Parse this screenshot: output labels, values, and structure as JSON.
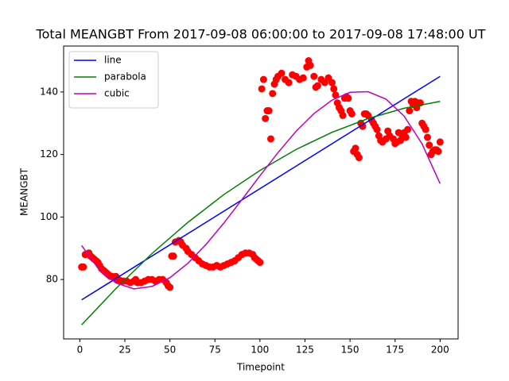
{
  "chart_data": {
    "type": "scatter",
    "title": "Total MEANGBT From 2017-09-08 06:00:00 to 2017-09-08 17:48:00 UT",
    "x_label": "Timepoint",
    "y_label": "MEANGBT",
    "color": "#ff0000",
    "x": [
      1,
      2,
      3,
      5,
      6,
      7,
      8,
      9,
      10,
      11,
      12,
      13,
      14,
      15,
      16,
      17,
      18,
      19,
      20,
      21,
      22,
      24,
      26,
      28,
      30,
      31,
      32,
      34,
      36,
      38,
      40,
      42,
      44,
      46,
      48,
      49,
      50,
      51,
      52,
      53,
      55,
      56,
      57,
      59,
      60,
      62,
      64,
      66,
      68,
      70,
      72,
      74,
      76,
      78,
      80,
      82,
      84,
      86,
      88,
      90,
      92,
      94,
      96,
      97,
      98,
      99,
      100,
      101,
      102,
      103,
      104,
      105,
      106,
      107,
      108,
      109,
      110,
      112,
      114,
      116,
      118,
      120,
      122,
      124,
      126,
      127,
      128,
      130,
      131,
      132,
      134,
      136,
      138,
      140,
      141,
      142,
      143,
      144,
      145,
      146,
      147,
      148,
      149,
      150,
      151,
      152,
      153,
      154,
      155,
      156,
      157,
      158,
      159,
      160,
      162,
      163,
      164,
      165,
      166,
      167,
      168,
      170,
      171,
      172,
      174,
      175,
      176,
      177,
      178,
      179,
      180,
      181,
      182,
      183,
      184,
      185,
      186,
      187,
      188,
      189,
      190,
      191,
      192,
      193,
      194,
      195,
      196,
      197,
      198,
      199,
      200
    ],
    "values": [
      84,
      84,
      88,
      88.5,
      87.5,
      87,
      86.5,
      86,
      85.5,
      84.5,
      83.5,
      83,
      82.5,
      82,
      81.5,
      81,
      81,
      80.5,
      81,
      80,
      79.8,
      79.5,
      79.5,
      79,
      79.5,
      80,
      79,
      79,
      79.5,
      80,
      80,
      79.5,
      80,
      80,
      79,
      78,
      77.5,
      87.5,
      87.5,
      92,
      92.5,
      92,
      91,
      90,
      89,
      88,
      87,
      86,
      85,
      84.5,
      84,
      84,
      84.5,
      84,
      84.5,
      85,
      85.5,
      86,
      87,
      88,
      88.5,
      88.5,
      88,
      87,
      86.5,
      86,
      85.5,
      141,
      144,
      131.5,
      134,
      134,
      125,
      139.5,
      142.5,
      144,
      145,
      146,
      144,
      143,
      145.5,
      145,
      144,
      144.5,
      148,
      150,
      148.5,
      145,
      141.5,
      142,
      144,
      143,
      144.5,
      143,
      141,
      139,
      136.5,
      135,
      134,
      132.5,
      138,
      138.5,
      138,
      134,
      133,
      121,
      122,
      120,
      119,
      130,
      129,
      133,
      133,
      132.5,
      131,
      130,
      129,
      128,
      126,
      124.5,
      124,
      125,
      127.5,
      126,
      125,
      123.5,
      124,
      127,
      124.5,
      126,
      127,
      125.5,
      128,
      134,
      137,
      136,
      137,
      135,
      136.5,
      136.5,
      130,
      129,
      128,
      125.5,
      123,
      120,
      121,
      121.5,
      121.5,
      121,
      124
    ],
    "series": [
      {
        "name": "line",
        "color": "#0000ff",
        "x": [
          1,
          200
        ],
        "values": [
          73.5,
          145
        ]
      },
      {
        "name": "parabola",
        "color": "#008000",
        "x": [
          1,
          20,
          40,
          60,
          80,
          100,
          120,
          140,
          160,
          180,
          200
        ],
        "values": [
          65.5,
          77.1,
          88.3,
          98.3,
          107.2,
          114.9,
          121.6,
          127.1,
          131.5,
          134.8,
          137.0
        ]
      },
      {
        "name": "cubic",
        "color": "#bf00bf",
        "x": [
          1,
          10,
          20,
          30,
          40,
          50,
          60,
          70,
          80,
          90,
          100,
          110,
          120,
          130,
          140,
          150,
          160,
          170,
          180,
          190,
          200
        ],
        "values": [
          90.9,
          83.7,
          78.9,
          77.0,
          77.8,
          80.6,
          85.2,
          91.2,
          98.1,
          105.6,
          113.2,
          120.6,
          127.4,
          133.1,
          137.4,
          139.9,
          140.1,
          137.7,
          132.3,
          123.4,
          110.7
        ]
      }
    ],
    "xlim": [
      -9,
      210
    ],
    "ylim": [
      61,
      154.7
    ],
    "xticks": [
      0,
      25,
      50,
      75,
      100,
      125,
      150,
      175,
      200
    ],
    "yticks": [
      80,
      100,
      120,
      140
    ],
    "legend": "upper left"
  }
}
